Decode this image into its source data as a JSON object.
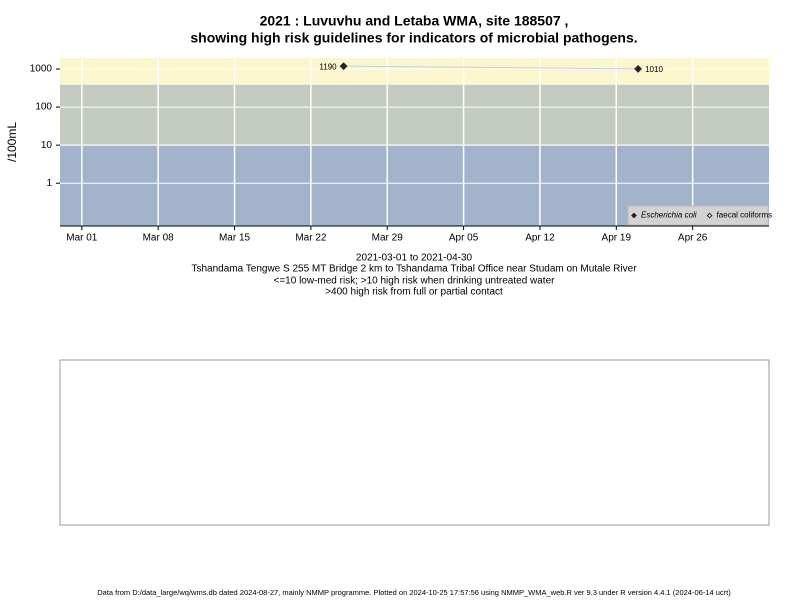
{
  "chart_data": {
    "type": "line",
    "title": "2021 : Luvuvhu and Letaba WMA, site 188507 ,",
    "subtitle": "showing high risk guidelines for indicators of microbial pathogens.",
    "ylabel": "/100mL",
    "log_y": true,
    "grid": true,
    "xlim": [
      "2021-02-27",
      "2021-05-03"
    ],
    "ylim": [
      0.075,
      1950
    ],
    "xticks": [
      {
        "value": "2021-03-01",
        "label": "Mar 01"
      },
      {
        "value": "2021-03-08",
        "label": "Mar 08"
      },
      {
        "value": "2021-03-15",
        "label": "Mar 15"
      },
      {
        "value": "2021-03-22",
        "label": "Mar 22"
      },
      {
        "value": "2021-03-29",
        "label": "Mar 29"
      },
      {
        "value": "2021-04-05",
        "label": "Apr 05"
      },
      {
        "value": "2021-04-12",
        "label": "Apr 12"
      },
      {
        "value": "2021-04-19",
        "label": "Apr 19"
      },
      {
        "value": "2021-04-26",
        "label": "Apr 26"
      }
    ],
    "yticks": [
      1,
      10,
      100,
      1000
    ],
    "guidelines": [
      10,
      400
    ],
    "band_colors": [
      "#a3b3cc",
      "#c3cbc0",
      "#fbf6cd"
    ],
    "line_color": "#c8d0dc",
    "series": [
      {
        "name": "Escherichia coli",
        "color": "#222222",
        "marker": "filled",
        "x": [
          "2021-03-25",
          "2021-04-21"
        ],
        "values": [
          1190,
          1010
        ]
      },
      {
        "name": "faecal coliforms",
        "color": "#222222",
        "marker": "open",
        "x": [],
        "values": []
      }
    ],
    "legend_position": "bottom-right",
    "annotations": [
      "2021-03-01 to 2021-04-30",
      "Tshandama Tengwe S 255 MT Bridge 2 km to Tshandama Tribal Office near Studam on Mutale River",
      "<=10 low-med risk; >10 high risk when drinking untreated water",
      ">400 high risk from full or partial contact"
    ],
    "footer": "Data from D:/data_large/wq/wms.db dated 2024-08-27, mainly NMMP programme. Plotted on 2024-10-25 17:57:56 using NMMP_WMA_web.R ver 9.3 under R version 4.4.1 (2024-06-14 ucrt)"
  }
}
